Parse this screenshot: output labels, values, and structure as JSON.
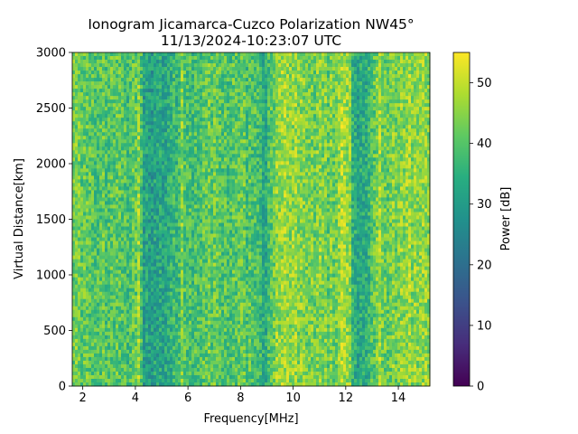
{
  "chart_data": {
    "type": "heatmap",
    "title": "Ionogram Jicamarca-Cuzco Polarization NW45°",
    "subtitle": "11/13/2024-10:23:07 UTC",
    "xlabel": "Frequency[MHz]",
    "ylabel": "Virtual Distance[km]",
    "xlim": [
      1.6,
      15.2
    ],
    "ylim": [
      0,
      3000
    ],
    "xticks": [
      2,
      4,
      6,
      8,
      10,
      12,
      14
    ],
    "yticks": [
      0,
      500,
      1000,
      1500,
      2000,
      2500,
      3000
    ],
    "colorbar": {
      "label": "Power [dB]",
      "range": [
        0,
        55
      ],
      "ticks": [
        0,
        10,
        20,
        30,
        40,
        50
      ],
      "colormap": "viridis"
    },
    "mean_power_by_frequency": {
      "frequency_mhz": [
        1.6,
        2.0,
        2.5,
        3.0,
        3.5,
        3.9,
        4.1,
        4.3,
        4.5,
        4.9,
        5.3,
        5.7,
        5.8,
        5.9,
        6.2,
        6.5,
        7.0,
        7.5,
        8.0,
        8.4,
        8.8,
        9.0,
        9.2,
        9.5,
        10.0,
        10.5,
        11.0,
        11.5,
        11.8,
        12.1,
        12.3,
        12.6,
        12.9,
        13.3,
        13.5,
        13.8,
        14.2,
        14.6,
        15.2
      ],
      "power_db": [
        42,
        42,
        41,
        40,
        40,
        39,
        46,
        32,
        30,
        32,
        34,
        38,
        48,
        36,
        38,
        41,
        41,
        40,
        41,
        39,
        35,
        34,
        42,
        46,
        45,
        44,
        44,
        42,
        46,
        48,
        33,
        32,
        37,
        47,
        42,
        44,
        45,
        46,
        44
      ]
    }
  }
}
